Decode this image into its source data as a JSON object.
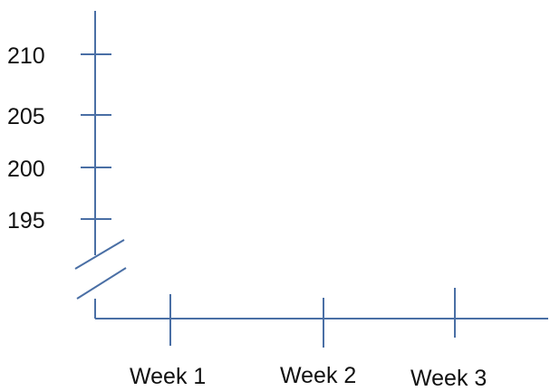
{
  "chart_data": {
    "type": "axes",
    "y_ticks": [
      "210",
      "205",
      "200",
      "195"
    ],
    "x_ticks": [
      "Week 1",
      "Week 2",
      "Week 3"
    ],
    "y_axis_break": true,
    "axis_color": "#4a6fa5",
    "grid": false
  }
}
